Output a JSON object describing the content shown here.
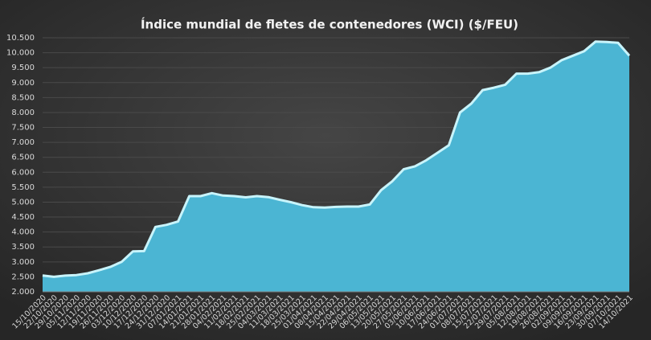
{
  "chart_data": {
    "type": "area",
    "title": "Índice mundial de fletes de contenedores (WCI) ($/FEU)",
    "categories": [
      "15/10/2020",
      "22/10/2020",
      "29/10/2020",
      "05/11/2020",
      "12/11/2020",
      "19/11/2020",
      "26/11/2020",
      "03/12/2020",
      "10/12/2020",
      "17/12/2020",
      "24/12/2020",
      "31/12/2020",
      "07/01/2021",
      "14/01/2021",
      "21/01/2021",
      "28/01/2021",
      "04/02/2021",
      "11/02/2021",
      "18/02/2021",
      "25/02/2021",
      "04/03/2021",
      "11/03/2021",
      "18/03/2021",
      "25/03/2021",
      "01/04/2021",
      "08/04/2021",
      "15/04/2021",
      "22/04/2021",
      "29/04/2021",
      "06/05/2021",
      "13/05/2021",
      "20/05/2021",
      "27/05/2021",
      "03/06/2021",
      "10/06/2021",
      "17/06/2021",
      "24/06/2021",
      "01/07/2021",
      "08/07/2021",
      "15/07/2021",
      "22/07/2021",
      "29/07/2021",
      "05/08/2021",
      "12/08/2021",
      "19/08/2021",
      "26/08/2021",
      "02/09/2021",
      "09/09/2021",
      "16/09/2021",
      "23/09/2021",
      "30/09/2021",
      "07/10/2021",
      "14/10/2021"
    ],
    "values": [
      2546,
      2500,
      2540,
      2560,
      2620,
      2720,
      2830,
      3000,
      3350,
      3360,
      4170,
      4240,
      4350,
      5200,
      5200,
      5300,
      5220,
      5200,
      5160,
      5200,
      5170,
      5080,
      5000,
      4900,
      4830,
      4820,
      4840,
      4850,
      4850,
      4920,
      5400,
      5700,
      6100,
      6200,
      6400,
      6650,
      6900,
      8000,
      8300,
      8750,
      8830,
      8930,
      9300,
      9300,
      9350,
      9500,
      9750,
      9900,
      10050,
      10370,
      10360,
      10330,
      9900
    ],
    "color": "#4bb5d3",
    "line_color": "#c8f4fb",
    "ylim": [
      2000,
      10500
    ],
    "yticks": [
      {
        "value": 2000,
        "label": "2.000"
      },
      {
        "value": 2500,
        "label": "2.500"
      },
      {
        "value": 3000,
        "label": "3.000"
      },
      {
        "value": 3500,
        "label": "3.500"
      },
      {
        "value": 4000,
        "label": "4.000"
      },
      {
        "value": 4500,
        "label": "4.500"
      },
      {
        "value": 5000,
        "label": "5.000"
      },
      {
        "value": 5500,
        "label": "5.500"
      },
      {
        "value": 6000,
        "label": "6.000"
      },
      {
        "value": 6500,
        "label": "6.500"
      },
      {
        "value": 7000,
        "label": "7.000"
      },
      {
        "value": 7500,
        "label": "7.500"
      },
      {
        "value": 8000,
        "label": "8.000"
      },
      {
        "value": 8500,
        "label": "8.500"
      },
      {
        "value": 9000,
        "label": "9.000"
      },
      {
        "value": 9500,
        "label": "9.500"
      },
      {
        "value": 10000,
        "label": "10.000"
      },
      {
        "value": 10500,
        "label": "10.500"
      }
    ],
    "grid": true
  }
}
